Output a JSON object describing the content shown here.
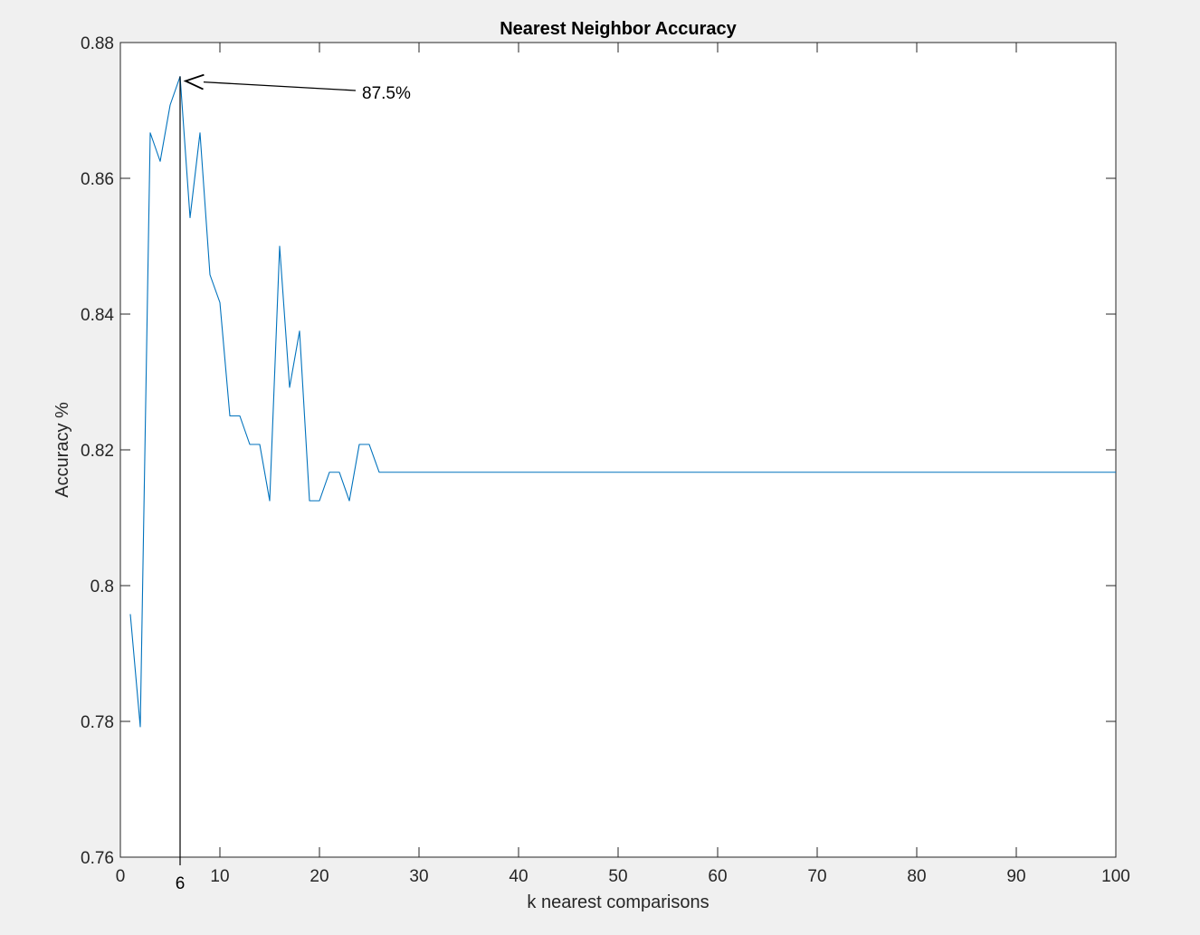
{
  "chart_data": {
    "type": "line",
    "title": "Nearest Neighbor Accuracy",
    "xlabel": "k nearest comparisons",
    "ylabel": "Accuracy %",
    "xlim": [
      0,
      100
    ],
    "ylim": [
      0.76,
      0.88
    ],
    "xticks": [
      0,
      10,
      20,
      30,
      40,
      50,
      60,
      70,
      80,
      90,
      100
    ],
    "yticks": [
      0.76,
      0.78,
      0.8,
      0.82,
      0.84,
      0.86,
      0.88
    ],
    "xtick_labels": [
      "0",
      "10",
      "20",
      "30",
      "40",
      "50",
      "60",
      "70",
      "80",
      "90",
      "100"
    ],
    "ytick_labels": [
      "0.76",
      "0.78",
      "0.8",
      "0.82",
      "0.84",
      "0.86",
      "0.88"
    ],
    "grid": false,
    "series": [
      {
        "color": "#0072bd",
        "x": [
          1,
          2,
          3,
          4,
          5,
          6,
          7,
          8,
          9,
          10,
          11,
          12,
          13,
          14,
          15,
          16,
          17,
          18,
          19,
          20,
          21,
          22,
          23,
          24,
          25,
          26,
          27,
          28,
          29,
          30,
          31,
          32,
          33,
          34,
          35,
          36,
          37,
          38,
          39,
          40,
          41,
          42,
          43,
          44,
          45,
          46,
          47,
          48,
          49,
          50,
          51,
          52,
          53,
          54,
          55,
          56,
          57,
          58,
          59,
          60,
          61,
          62,
          63,
          64,
          65,
          66,
          67,
          68,
          69,
          70,
          71,
          72,
          73,
          74,
          75,
          76,
          77,
          78,
          79,
          80,
          81,
          82,
          83,
          84,
          85,
          86,
          87,
          88,
          89,
          90,
          91,
          92,
          93,
          94,
          95,
          96,
          97,
          98,
          99,
          100
        ],
        "y": [
          0.7958,
          0.7792,
          0.8667,
          0.8625,
          0.8708,
          0.875,
          0.8542,
          0.8667,
          0.8458,
          0.8417,
          0.825,
          0.825,
          0.8208,
          0.8208,
          0.8125,
          0.85,
          0.8292,
          0.8375,
          0.8125,
          0.8125,
          0.8167,
          0.8167,
          0.8125,
          0.8208,
          0.8208,
          0.8167,
          0.8167,
          0.8167,
          0.8167,
          0.8167,
          0.8167,
          0.8167,
          0.8167,
          0.8167,
          0.8167,
          0.8167,
          0.8167,
          0.8167,
          0.8167,
          0.8167,
          0.8167,
          0.8167,
          0.8167,
          0.8167,
          0.8167,
          0.8167,
          0.8167,
          0.8167,
          0.8167,
          0.8167,
          0.8167,
          0.8167,
          0.8167,
          0.8167,
          0.8167,
          0.8167,
          0.8167,
          0.8167,
          0.8167,
          0.8167,
          0.8167,
          0.8167,
          0.8167,
          0.8167,
          0.8167,
          0.8167,
          0.8167,
          0.8167,
          0.8167,
          0.8167,
          0.8167,
          0.8167,
          0.8167,
          0.8167,
          0.8167,
          0.8167,
          0.8167,
          0.8167,
          0.8167,
          0.8167,
          0.8167,
          0.8167,
          0.8167,
          0.8167,
          0.8167,
          0.8167,
          0.8167,
          0.8167,
          0.8167,
          0.8167,
          0.8167,
          0.8167,
          0.8167,
          0.8167,
          0.8167,
          0.8167,
          0.8167,
          0.8167,
          0.8167,
          0.8167
        ]
      }
    ],
    "annotations": [
      {
        "kind": "vertical-line",
        "x": 6,
        "label": "6",
        "color": "#000000"
      },
      {
        "kind": "arrow",
        "text": "87.5%",
        "target_x": 6,
        "target_y": 0.875,
        "color": "#000000"
      }
    ]
  }
}
